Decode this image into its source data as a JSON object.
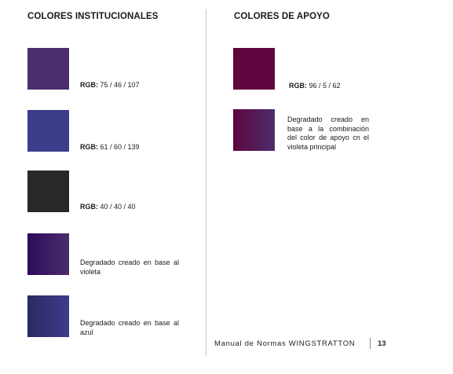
{
  "left_section": {
    "heading": "COLORES INSTITUCIONALES",
    "items": [
      {
        "color": "#4b2e6b",
        "rgb_label": "RGB:",
        "rgb_value": " 75 / 46 / 107",
        "description": ""
      },
      {
        "color": "#3d3c8b",
        "rgb_label": "RGB:",
        "rgb_value": " 61 / 60 / 139",
        "description": ""
      },
      {
        "color": "#282828",
        "rgb_label": "RGB:",
        "rgb_value": " 40 / 40 / 40",
        "description": ""
      },
      {
        "gradient_from": "#2c0a5c",
        "gradient_to": "#4b2e6b",
        "rgb_label": "",
        "rgb_value": "",
        "description": "Degradado creado en base al violeta"
      },
      {
        "gradient_from": "#2a2a62",
        "gradient_to": "#3d3c8b",
        "rgb_label": "",
        "rgb_value": "",
        "description": "Degradado creado en base al azul"
      }
    ]
  },
  "right_section": {
    "heading": "COLORES DE APOYO",
    "items": [
      {
        "color": "#60053e",
        "rgb_label": "RGB:",
        "rgb_value": " 96 / 5 / 62",
        "description": ""
      },
      {
        "gradient_from": "#60053e",
        "gradient_to": "#4b2e6b",
        "rgb_label": "",
        "rgb_value": "",
        "description": "Degradado creado en base a la combinación del color de apoyo cn el violeta principal"
      }
    ]
  },
  "footer": {
    "text": "Manual de Normas WINGSTRATTON",
    "page_number": "13"
  }
}
